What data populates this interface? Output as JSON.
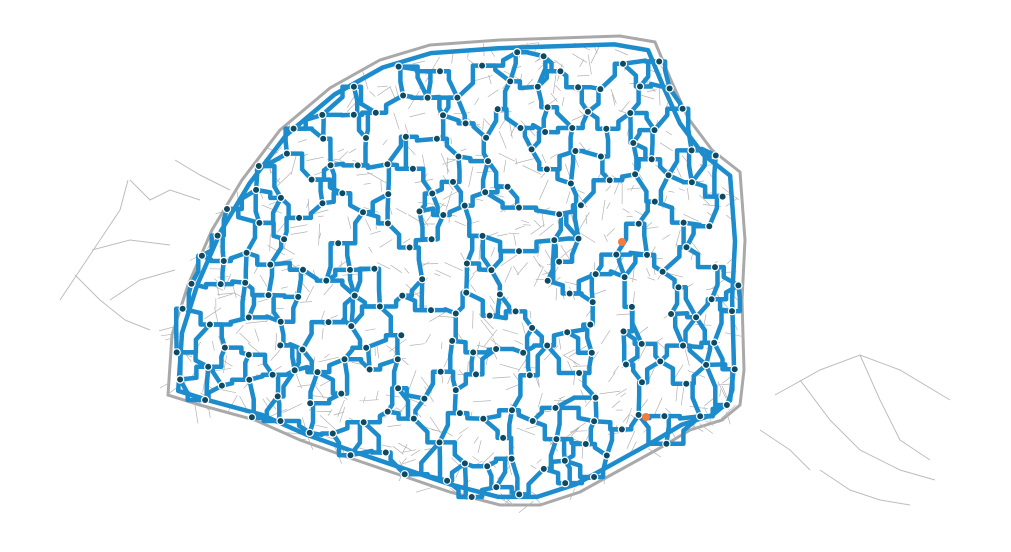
{
  "map": {
    "kind": "city street network with highlighted route graph",
    "colors": {
      "background": "#ffffff",
      "street": "#b3b3b3",
      "route": "#1c8ccc",
      "node_fill": "#0f4a63",
      "node_ring": "#ffffff",
      "highlight": "#f47b3a"
    },
    "legend": [],
    "labels": []
  }
}
